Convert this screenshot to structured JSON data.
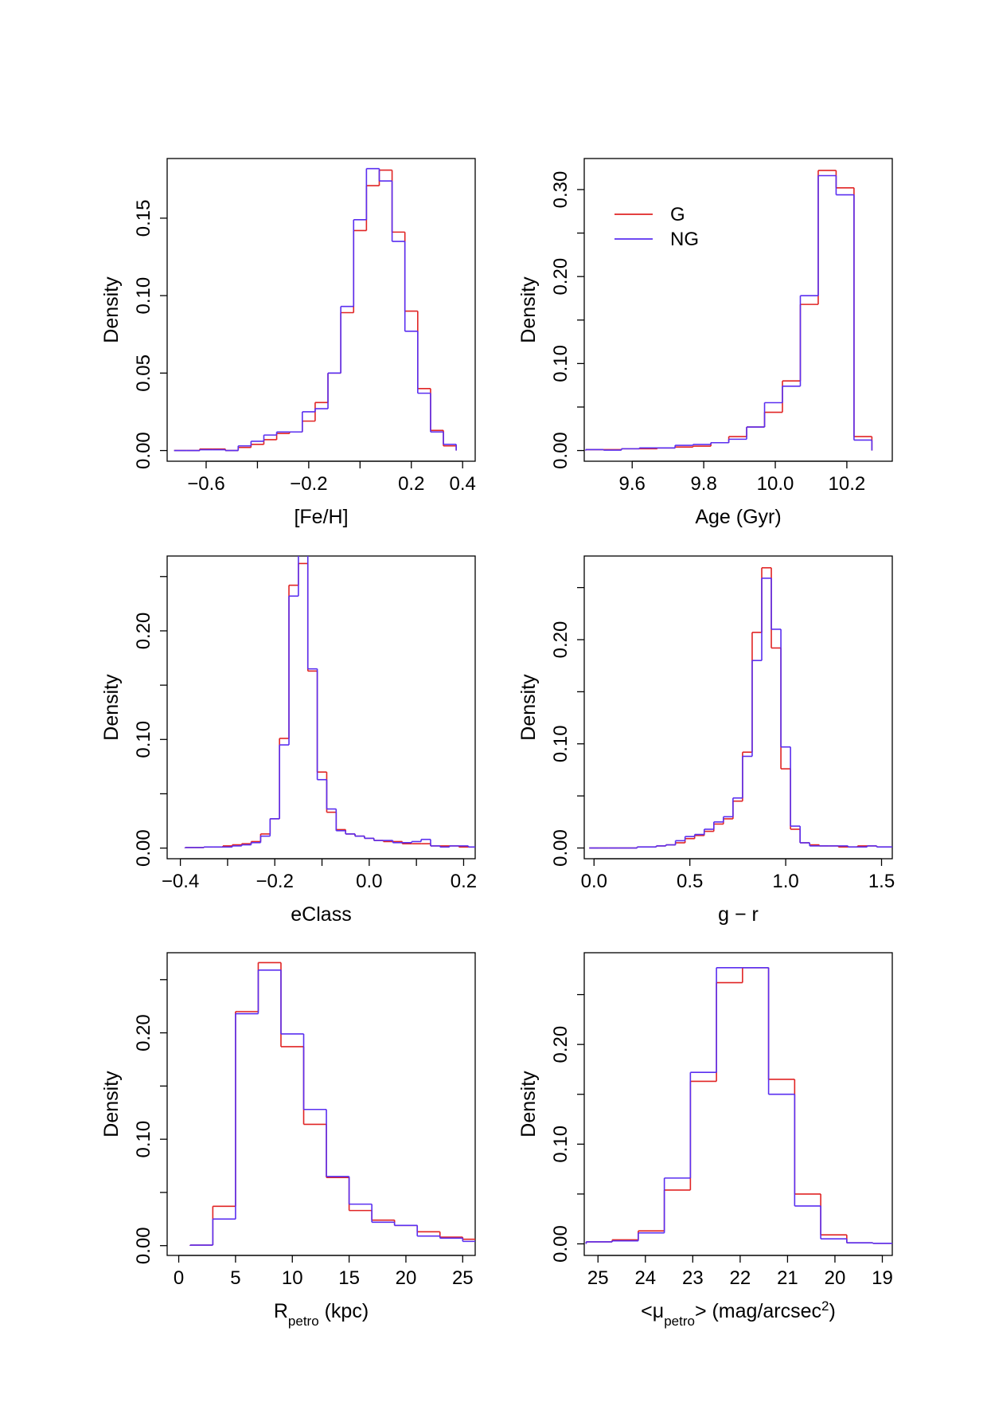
{
  "chart_data": [
    {
      "type": "histogram",
      "xlabel_parts": [
        {
          "text": "[Fe/H]"
        }
      ],
      "ylabel": "Density",
      "bins": [
        -0.725,
        -0.675,
        -0.625,
        -0.575,
        -0.525,
        -0.475,
        -0.425,
        -0.375,
        -0.325,
        -0.275,
        -0.225,
        -0.175,
        -0.125,
        -0.075,
        -0.025,
        0.025,
        0.075,
        0.125,
        0.175,
        0.225,
        0.275,
        0.325,
        0.375
      ],
      "series": [
        {
          "color": "#e02424",
          "values": [
            0,
            0,
            0.001,
            0.001,
            0,
            0.002,
            0.004,
            0.007,
            0.011,
            0.012,
            0.019,
            0.031,
            0.05,
            0.089,
            0.142,
            0.171,
            0.181,
            0.141,
            0.09,
            0.04,
            0.013,
            0.003
          ]
        },
        {
          "color": "#5a2ff0",
          "values": [
            0,
            0,
            0.0005,
            0.0005,
            0,
            0.003,
            0.006,
            0.01,
            0.012,
            0.012,
            0.025,
            0.027,
            0.05,
            0.093,
            0.149,
            0.182,
            0.174,
            0.135,
            0.077,
            0.037,
            0.012,
            0.004
          ]
        }
      ],
      "xlim": [
        -0.752,
        0.449
      ],
      "ylim": [
        -0.0069,
        0.1885
      ],
      "xticks": [
        {
          "value": -0.6,
          "label": "−0.6"
        },
        {
          "value": -0.4
        },
        {
          "value": -0.2,
          "label": "−0.2"
        },
        {
          "value": 0
        },
        0.2,
        0.4
      ],
      "yticks": [
        {
          "value": 0,
          "label": "0.00"
        },
        {
          "value": 0.05,
          "label": "0.05"
        },
        {
          "value": 0.1,
          "label": "0.10"
        },
        {
          "value": 0.15,
          "label": "0.15"
        }
      ]
    },
    {
      "type": "histogram",
      "xlabel_parts": [
        {
          "text": "Age (Gyr)"
        }
      ],
      "ylabel": "Density",
      "legend": "topleft",
      "bins": [
        9.47,
        9.52,
        9.57,
        9.62,
        9.67,
        9.72,
        9.77,
        9.82,
        9.87,
        9.92,
        9.97,
        10.02,
        10.07,
        10.12,
        10.17,
        10.22,
        10.27
      ],
      "series": [
        {
          "name": "G",
          "color": "#e02424",
          "values": [
            0.001,
            0.001,
            0.002,
            0.002,
            0.003,
            0.004,
            0.005,
            0.009,
            0.016,
            0.027,
            0.044,
            0.08,
            0.168,
            0.322,
            0.302,
            0.016
          ]
        },
        {
          "name": "NG",
          "color": "#5a2ff0",
          "values": [
            0.001,
            0.0005,
            0.002,
            0.003,
            0.003,
            0.006,
            0.007,
            0.009,
            0.013,
            0.027,
            0.055,
            0.074,
            0.178,
            0.316,
            0.294,
            0.012
          ]
        }
      ],
      "xlim": [
        9.466,
        10.327
      ],
      "ylim": [
        -0.0123,
        0.3357
      ],
      "xticks": [
        9.6,
        9.8,
        {
          "value": 10,
          "label": "10.0"
        },
        10.2
      ],
      "yticks": [
        {
          "value": 0,
          "label": "0.00"
        },
        {
          "value": 0.05
        },
        {
          "value": 0.1,
          "label": "0.10"
        },
        {
          "value": 0.15
        },
        {
          "value": 0.2,
          "label": "0.20"
        },
        {
          "value": 0.25
        },
        {
          "value": 0.3,
          "label": "0.30"
        }
      ]
    },
    {
      "type": "histogram",
      "xlabel_parts": [
        {
          "text": "eClass"
        }
      ],
      "ylabel": "Density",
      "bins": [
        -0.39,
        -0.37,
        -0.35,
        -0.33,
        -0.31,
        -0.29,
        -0.27,
        -0.25,
        -0.23,
        -0.21,
        -0.19,
        -0.17,
        -0.15,
        -0.13,
        -0.11,
        -0.09,
        -0.07,
        -0.05,
        -0.03,
        -0.01,
        0.01,
        0.03,
        0.05,
        0.07,
        0.09,
        0.11,
        0.13,
        0.15,
        0.17,
        0.19,
        0.21,
        0.23
      ],
      "series": [
        {
          "color": "#e02424",
          "values": [
            0.0005,
            0.0005,
            0.001,
            0.001,
            0.002,
            0.003,
            0.004,
            0.006,
            0.013,
            0.027,
            0.101,
            0.242,
            0.262,
            0.163,
            0.07,
            0.033,
            0.017,
            0.013,
            0.011,
            0.009,
            0.007,
            0.006,
            0.006,
            0.004,
            0.004,
            0.004,
            0.002,
            0.002,
            0.002,
            0.001,
            0.001
          ]
        },
        {
          "color": "#5a2ff0",
          "values": [
            0.0005,
            0.0005,
            0.001,
            0.001,
            0.001,
            0.002,
            0.003,
            0.005,
            0.011,
            0.027,
            0.095,
            0.232,
            0.272,
            0.165,
            0.063,
            0.036,
            0.016,
            0.013,
            0.011,
            0.009,
            0.007,
            0.007,
            0.005,
            0.005,
            0.006,
            0.008,
            0.002,
            0.001,
            0.002,
            0.002,
            0.001
          ]
        }
      ],
      "xlim": [
        -0.428,
        0.2245
      ],
      "ylim": [
        -0.0098,
        0.2689
      ],
      "xticks": [
        {
          "value": -0.4,
          "label": "−0.4"
        },
        {
          "value": -0.3
        },
        {
          "value": -0.2,
          "label": "−0.2"
        },
        {
          "value": -0.1
        },
        {
          "value": 0,
          "label": "0.0"
        },
        {
          "value": 0.1
        },
        0.2
      ],
      "yticks": [
        {
          "value": 0,
          "label": "0.00"
        },
        {
          "value": 0.05
        },
        {
          "value": 0.1,
          "label": "0.10"
        },
        {
          "value": 0.15
        },
        {
          "value": 0.2,
          "label": "0.20"
        },
        {
          "value": 0.25
        }
      ]
    },
    {
      "type": "histogram",
      "xlabel_parts": [
        {
          "text": "g − r"
        }
      ],
      "ylabel": "Density",
      "bins": [
        -0.025,
        0.025,
        0.075,
        0.125,
        0.175,
        0.225,
        0.275,
        0.325,
        0.375,
        0.425,
        0.475,
        0.525,
        0.575,
        0.625,
        0.675,
        0.725,
        0.775,
        0.825,
        0.875,
        0.925,
        0.975,
        1.025,
        1.075,
        1.125,
        1.175,
        1.225,
        1.275,
        1.325,
        1.375,
        1.425,
        1.475,
        1.525,
        1.575
      ],
      "series": [
        {
          "color": "#e02424",
          "values": [
            0,
            0,
            0,
            0,
            0,
            0.001,
            0.001,
            0.002,
            0.003,
            0.005,
            0.009,
            0.012,
            0.016,
            0.023,
            0.028,
            0.045,
            0.092,
            0.207,
            0.269,
            0.192,
            0.076,
            0.018,
            0.005,
            0.003,
            0.002,
            0.002,
            0.001,
            0.001,
            0.002,
            0.002,
            0.001,
            0.001
          ]
        },
        {
          "color": "#5a2ff0",
          "values": [
            0,
            0,
            0,
            0,
            0,
            0.001,
            0.001,
            0.002,
            0.003,
            0.007,
            0.011,
            0.013,
            0.018,
            0.025,
            0.03,
            0.048,
            0.088,
            0.18,
            0.259,
            0.21,
            0.097,
            0.021,
            0.005,
            0.002,
            0.002,
            0.002,
            0.002,
            0.001,
            0.001,
            0.002,
            0.001,
            0.001
          ]
        }
      ],
      "xlim": [
        -0.051,
        1.556
      ],
      "ylim": [
        -0.0103,
        0.2803
      ],
      "xticks": [
        {
          "value": 0,
          "label": "0.0"
        },
        0.5,
        {
          "value": 1,
          "label": "1.0"
        },
        1.5
      ],
      "yticks": [
        {
          "value": 0,
          "label": "0.00"
        },
        {
          "value": 0.05
        },
        {
          "value": 0.1,
          "label": "0.10"
        },
        {
          "value": 0.15
        },
        {
          "value": 0.2,
          "label": "0.20"
        },
        {
          "value": 0.25
        }
      ]
    },
    {
      "type": "histogram",
      "xlabel_parts": [
        {
          "text": "R"
        },
        {
          "text": "petro",
          "shift": "sub"
        },
        {
          "text": " (kpc)"
        }
      ],
      "ylabel": "Density",
      "bins": [
        1,
        3,
        5,
        7,
        9,
        11,
        13,
        15,
        17,
        19,
        21,
        23,
        25,
        27
      ],
      "series": [
        {
          "color": "#e02424",
          "values": [
            0.0005,
            0.037,
            0.22,
            0.266,
            0.187,
            0.114,
            0.064,
            0.033,
            0.024,
            0.019,
            0.013,
            0.008,
            0.006
          ]
        },
        {
          "color": "#5a2ff0",
          "values": [
            0.0005,
            0.025,
            0.218,
            0.259,
            0.199,
            0.128,
            0.065,
            0.039,
            0.022,
            0.019,
            0.009,
            0.007,
            0.004
          ]
        }
      ],
      "xlim": [
        -1.02,
        26.1
      ],
      "ylim": [
        -0.0092,
        0.2753
      ],
      "xticks": [
        0,
        5,
        10,
        15,
        20,
        25
      ],
      "yticks": [
        {
          "value": 0,
          "label": "0.00"
        },
        {
          "value": 0.05
        },
        {
          "value": 0.1,
          "label": "0.10"
        },
        {
          "value": 0.15
        },
        {
          "value": 0.2,
          "label": "0.20"
        },
        {
          "value": 0.25
        }
      ]
    },
    {
      "type": "histogram",
      "xlabel_parts": [
        {
          "text": "<μ"
        },
        {
          "text": "petro",
          "shift": "sub"
        },
        {
          "text": "> (mag/arcsec"
        },
        {
          "text": "2",
          "shift": "super"
        },
        {
          "text": ")"
        }
      ],
      "ylabel": "Density",
      "bins": [
        25.25,
        24.7,
        24.15,
        23.6,
        23.05,
        22.5,
        21.95,
        21.4,
        20.85,
        20.3,
        19.75,
        19.2,
        18.65
      ],
      "series": [
        {
          "color": "#e02424",
          "values": [
            0.002,
            0.004,
            0.013,
            0.054,
            0.163,
            0.262,
            0.277,
            0.165,
            0.05,
            0.009,
            0.001,
            0.0005
          ]
        },
        {
          "color": "#5a2ff0",
          "values": [
            0.002,
            0.003,
            0.011,
            0.066,
            0.172,
            0.277,
            0.277,
            0.15,
            0.038,
            0.005,
            0.001,
            0.0005
          ]
        }
      ],
      "xlim": [
        25.29,
        18.79
      ],
      "ylim": [
        -0.0116,
        0.292
      ],
      "xticks": [
        25,
        24,
        23,
        22,
        21,
        20,
        19
      ],
      "yticks": [
        {
          "value": 0,
          "label": "0.00"
        },
        {
          "value": 0.05
        },
        {
          "value": 0.1,
          "label": "0.10"
        },
        {
          "value": 0.15
        },
        {
          "value": 0.2,
          "label": "0.20"
        },
        {
          "value": 0.25
        }
      ]
    }
  ]
}
